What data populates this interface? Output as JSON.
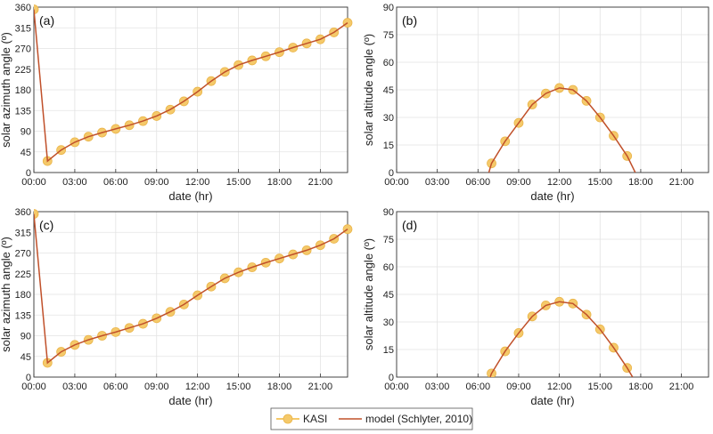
{
  "colors": {
    "kasi": "#f5c96a",
    "kasi_edge": "#eab54a",
    "model": "#c0502a",
    "grid": "#e3e3e3",
    "axis": "#333333"
  },
  "legend": {
    "kasi_label": "KASI",
    "model_label": "model (Schlyter, 2010)"
  },
  "chart_data": [
    {
      "type": "line",
      "panel_label": "(a)",
      "xlabel": "date (hr)",
      "ylabel": "solar azimuth angle (º)",
      "xlim": [
        0,
        23
      ],
      "ylim": [
        0,
        360
      ],
      "xticks": [
        "00:00",
        "03:00",
        "06:00",
        "09:00",
        "12:00",
        "15:00",
        "18:00",
        "21:00"
      ],
      "yticks": [
        0,
        45,
        90,
        135,
        180,
        225,
        270,
        315,
        360
      ],
      "grid": true,
      "series": [
        {
          "name": "KASI",
          "x": [
            0,
            1,
            2,
            3,
            4,
            5,
            6,
            7,
            8,
            9,
            10,
            11,
            12,
            13,
            14,
            15,
            16,
            17,
            18,
            19,
            20,
            21,
            22,
            23
          ],
          "y": [
            355,
            25,
            49,
            66,
            78,
            87,
            95,
            103,
            112,
            123,
            137,
            155,
            176,
            199,
            219,
            234,
            244,
            253,
            262,
            272,
            281,
            290,
            305,
            326
          ]
        },
        {
          "name": "model (Schlyter, 2010)",
          "x": [
            0,
            1,
            2,
            3,
            4,
            5,
            6,
            7,
            8,
            9,
            10,
            11,
            12,
            13,
            14,
            15,
            16,
            17,
            18,
            19,
            20,
            21,
            22,
            23
          ],
          "y": [
            355,
            25,
            49,
            66,
            78,
            87,
            95,
            103,
            112,
            123,
            137,
            155,
            176,
            199,
            219,
            234,
            244,
            253,
            262,
            272,
            281,
            290,
            305,
            326
          ]
        }
      ]
    },
    {
      "type": "line",
      "panel_label": "(b)",
      "xlabel": "date (hr)",
      "ylabel": "solar altitude angle (º)",
      "xlim": [
        0,
        23
      ],
      "ylim": [
        0,
        90
      ],
      "xticks": [
        "00:00",
        "03:00",
        "06:00",
        "09:00",
        "12:00",
        "15:00",
        "18:00",
        "21:00"
      ],
      "yticks": [
        0,
        15,
        30,
        45,
        60,
        75,
        90
      ],
      "grid": true,
      "series": [
        {
          "name": "KASI",
          "x": [
            7,
            8,
            9,
            10,
            11,
            12,
            13,
            14,
            15,
            16,
            17
          ],
          "y": [
            5,
            17,
            27,
            37,
            43,
            46,
            45,
            39,
            30,
            20,
            9
          ]
        },
        {
          "name": "model (Schlyter, 2010)",
          "x": [
            6.8,
            7,
            8,
            9,
            10,
            11,
            12,
            13,
            14,
            15,
            16,
            17,
            17.6
          ],
          "y": [
            0,
            5,
            17,
            27,
            37,
            43,
            46,
            45,
            39,
            30,
            20,
            9,
            0
          ]
        }
      ]
    },
    {
      "type": "line",
      "panel_label": "(c)",
      "xlabel": "date (hr)",
      "ylabel": "solar azimuth angle (º)",
      "xlim": [
        0,
        23
      ],
      "ylim": [
        0,
        360
      ],
      "xticks": [
        "00:00",
        "03:00",
        "06:00",
        "09:00",
        "12:00",
        "15:00",
        "18:00",
        "21:00"
      ],
      "yticks": [
        0,
        45,
        90,
        135,
        180,
        225,
        270,
        315,
        360
      ],
      "grid": true,
      "series": [
        {
          "name": "KASI",
          "x": [
            0,
            1,
            2,
            3,
            4,
            5,
            6,
            7,
            8,
            9,
            10,
            11,
            12,
            13,
            14,
            15,
            16,
            17,
            18,
            19,
            20,
            21,
            22,
            23
          ],
          "y": [
            355,
            31,
            55,
            70,
            81,
            90,
            98,
            107,
            116,
            128,
            142,
            158,
            178,
            197,
            215,
            228,
            239,
            249,
            258,
            267,
            276,
            287,
            301,
            322
          ]
        },
        {
          "name": "model (Schlyter, 2010)",
          "x": [
            0,
            1,
            2,
            3,
            4,
            5,
            6,
            7,
            8,
            9,
            10,
            11,
            12,
            13,
            14,
            15,
            16,
            17,
            18,
            19,
            20,
            21,
            22,
            23
          ],
          "y": [
            355,
            31,
            55,
            70,
            81,
            90,
            98,
            107,
            116,
            128,
            142,
            158,
            178,
            197,
            215,
            228,
            239,
            249,
            258,
            267,
            276,
            287,
            301,
            322
          ]
        }
      ]
    },
    {
      "type": "line",
      "panel_label": "(d)",
      "xlabel": "date (hr)",
      "ylabel": "solar altitude angle (º)",
      "xlim": [
        0,
        23
      ],
      "ylim": [
        0,
        90
      ],
      "xticks": [
        "00:00",
        "03:00",
        "06:00",
        "09:00",
        "12:00",
        "15:00",
        "18:00",
        "21:00"
      ],
      "yticks": [
        0,
        15,
        30,
        45,
        60,
        75,
        90
      ],
      "grid": true,
      "series": [
        {
          "name": "KASI",
          "x": [
            7,
            8,
            9,
            10,
            11,
            12,
            13,
            14,
            15,
            16,
            17
          ],
          "y": [
            2,
            14,
            24,
            33,
            39,
            41,
            40,
            34,
            26,
            16,
            5
          ]
        },
        {
          "name": "model (Schlyter, 2010)",
          "x": [
            6.9,
            7,
            8,
            9,
            10,
            11,
            12,
            13,
            14,
            15,
            16,
            17,
            17.4
          ],
          "y": [
            0,
            2,
            14,
            24,
            33,
            39,
            41,
            40,
            34,
            26,
            16,
            5,
            0
          ]
        }
      ]
    }
  ]
}
